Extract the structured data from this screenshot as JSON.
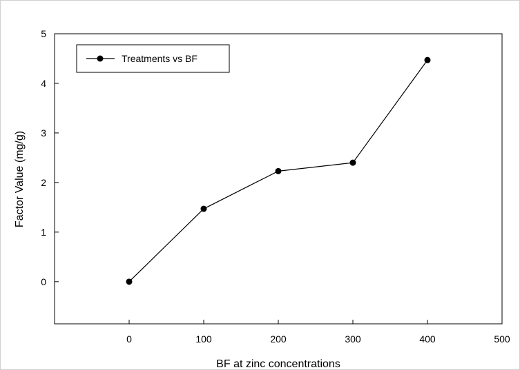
{
  "chart_data": {
    "type": "line",
    "title": "",
    "xlabel": "BF at zinc concentrations",
    "ylabel": "Factor Value (mg/g)",
    "xlim": [
      -100,
      500
    ],
    "ylim": [
      -0.85,
      5
    ],
    "xticks": [
      0,
      100,
      200,
      300,
      400,
      500
    ],
    "yticks": [
      0,
      1,
      2,
      3,
      4,
      5
    ],
    "grid": false,
    "legend_position": "top-left",
    "series": [
      {
        "name": "Treatments vs BF",
        "color": "#000000",
        "marker": "circle",
        "x": [
          0,
          100,
          200,
          300,
          400
        ],
        "y": [
          0.0,
          1.47,
          2.23,
          2.4,
          4.47
        ]
      }
    ]
  }
}
